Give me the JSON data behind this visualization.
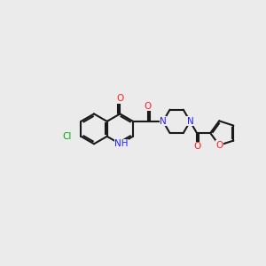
{
  "bg_color": "#ebebeb",
  "bond_color": "#1a1a1a",
  "bond_width": 1.5,
  "atom_colors": {
    "N": "#2020ff",
    "O": "#ff2020",
    "Cl": "#00aa00",
    "C": "#1a1a1a"
  },
  "font_size": 7.5
}
